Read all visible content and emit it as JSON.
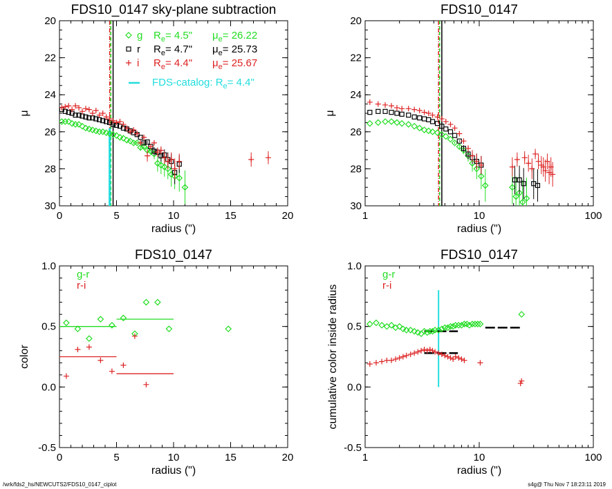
{
  "footer": {
    "left": "/wrk/fds2_hs/NEWCUTS2/FDS10_0147_ciplot",
    "right": "s4g@  Thu Nov  7 18:23:11 2019"
  },
  "colors": {
    "g": "#22dd22",
    "r": "#000000",
    "i": "#dd2222",
    "catalog": "#22dddd"
  },
  "chart_data": [
    {
      "type": "scatter",
      "title": "FDS10_0147 sky-plane subtraction",
      "xlabel": "radius (\")",
      "ylabel": "μ",
      "xscale": "linear",
      "xlim": [
        0,
        20
      ],
      "ylim": [
        30,
        20
      ],
      "xticks": [
        0,
        5,
        10,
        15,
        20
      ],
      "yticks": [
        20,
        22,
        24,
        26,
        28,
        30
      ],
      "legend": [
        {
          "band": "g",
          "marker": "diamond",
          "re_label": "R",
          "re_sub": "e",
          "re_value": "=  4.5\"",
          "mu_label": "μ",
          "mu_sub": "e",
          "mu_value": "= 26.22"
        },
        {
          "band": "r",
          "marker": "square",
          "re_label": "R",
          "re_sub": "e",
          "re_value": "=  4.7\"",
          "mu_label": "μ",
          "mu_sub": "e",
          "mu_value": "= 25.73"
        },
        {
          "band": "i",
          "marker": "plus",
          "re_label": "R",
          "re_sub": "e",
          "re_value": "=  4.4\"",
          "mu_label": "μ",
          "mu_sub": "e",
          "mu_value": "= 25.67"
        }
      ],
      "catalog_label": "FDS-catalog: R",
      "catalog_sub": "e",
      "catalog_value": "=  4.4\"",
      "vlines": [
        {
          "band": "g",
          "x": 4.5,
          "style": "dash"
        },
        {
          "band": "r",
          "x": 4.7,
          "style": "solid"
        },
        {
          "band": "i",
          "x": 4.4,
          "style": "dashdot"
        },
        {
          "band": "catalog",
          "x": 4.4,
          "style": "solid",
          "ymin": 25.8,
          "ymax": 30
        }
      ],
      "series": [
        {
          "name": "g",
          "marker": "diamond",
          "x": [
            0.2,
            0.5,
            0.8,
            1.1,
            1.4,
            1.7,
            2.0,
            2.3,
            2.6,
            2.9,
            3.2,
            3.5,
            3.8,
            4.1,
            4.4,
            4.7,
            5.0,
            5.3,
            5.6,
            5.9,
            6.2,
            6.5,
            6.8,
            7.1,
            7.4,
            7.7,
            8.0,
            8.3,
            8.6,
            8.9,
            9.2,
            9.5,
            9.8,
            10.1,
            10.5,
            11.0
          ],
          "y": [
            25.45,
            25.45,
            25.45,
            25.55,
            25.6,
            25.6,
            25.7,
            25.8,
            25.85,
            25.9,
            25.95,
            26.0,
            26.0,
            26.05,
            26.1,
            26.15,
            26.2,
            26.3,
            26.35,
            26.45,
            26.5,
            26.6,
            26.6,
            26.85,
            26.8,
            27.0,
            27.05,
            27.2,
            27.7,
            27.8,
            27.9,
            28.0,
            28.3,
            28.4,
            28.5,
            29.0
          ]
        },
        {
          "name": "r",
          "marker": "square",
          "x": [
            0.2,
            0.5,
            0.8,
            1.1,
            1.4,
            1.7,
            2.0,
            2.3,
            2.6,
            2.9,
            3.2,
            3.5,
            3.8,
            4.1,
            4.4,
            4.7,
            5.0,
            5.3,
            5.6,
            5.9,
            6.2,
            6.5,
            6.8,
            7.1,
            7.4,
            7.7,
            8.0,
            8.3,
            8.6,
            8.9,
            9.2,
            9.5,
            9.8,
            10.1,
            10.5
          ],
          "y": [
            24.8,
            24.9,
            24.95,
            25.0,
            25.1,
            25.1,
            25.15,
            25.2,
            25.25,
            25.25,
            25.3,
            25.35,
            25.4,
            25.45,
            25.5,
            25.6,
            25.65,
            25.7,
            25.8,
            25.85,
            25.95,
            26.05,
            26.15,
            26.3,
            26.6,
            26.55,
            26.8,
            27.05,
            27.1,
            27.3,
            27.25,
            27.5,
            27.6,
            28.2,
            27.75
          ]
        },
        {
          "name": "i",
          "marker": "plus",
          "x": [
            0.2,
            0.5,
            0.8,
            1.1,
            1.4,
            1.7,
            2.0,
            2.3,
            2.6,
            2.9,
            3.2,
            3.5,
            3.8,
            4.1,
            4.4,
            4.7,
            5.0,
            5.3,
            5.6,
            5.9,
            6.2,
            6.5,
            6.8,
            7.1,
            7.4,
            7.7,
            8.0,
            8.3,
            8.6,
            8.9,
            9.2,
            9.5,
            9.8,
            10.1,
            10.5,
            16.8,
            18.3
          ],
          "y": [
            24.7,
            24.65,
            24.6,
            24.8,
            24.6,
            24.7,
            24.9,
            24.75,
            24.8,
            25.0,
            24.85,
            25.1,
            25.0,
            25.2,
            25.3,
            25.4,
            25.5,
            25.45,
            25.6,
            25.8,
            26.0,
            25.9,
            26.1,
            26.6,
            26.3,
            27.3,
            26.8,
            26.6,
            27.1,
            27.0,
            27.4,
            27.6,
            27.5,
            28.0,
            27.6,
            27.5,
            27.4
          ]
        }
      ]
    },
    {
      "type": "scatter",
      "title": "FDS10_0147",
      "xlabel": "radius (\")",
      "ylabel": "μ",
      "xscale": "log",
      "xlim": [
        1,
        100
      ],
      "ylim": [
        30,
        20
      ],
      "xticks": [
        1,
        10,
        100
      ],
      "yticks": [
        20,
        22,
        24,
        26,
        28,
        30
      ],
      "vlines": [
        {
          "band": "g",
          "x": 4.5,
          "style": "dash"
        },
        {
          "band": "r",
          "x": 4.7,
          "style": "solid"
        },
        {
          "band": "i",
          "x": 4.4,
          "style": "dashdot"
        }
      ],
      "series": [
        {
          "name": "g",
          "marker": "diamond",
          "x": [
            1.1,
            1.3,
            1.5,
            1.7,
            1.9,
            2.1,
            2.4,
            2.7,
            3.0,
            3.3,
            3.6,
            3.9,
            4.3,
            4.7,
            5.1,
            5.6,
            6.1,
            6.7,
            7.3,
            8.0,
            8.7,
            9.5,
            10.4,
            11.3,
            19.5,
            21.0,
            22.5,
            24.0,
            26.0
          ],
          "y": [
            25.55,
            25.5,
            25.45,
            25.45,
            25.5,
            25.55,
            25.6,
            25.7,
            25.8,
            25.9,
            25.95,
            26.0,
            26.05,
            26.15,
            26.25,
            26.4,
            26.6,
            26.8,
            27.0,
            27.3,
            27.7,
            28.0,
            28.4,
            28.9,
            29.0,
            29.5,
            29.3,
            29.8,
            29.6
          ]
        },
        {
          "name": "r",
          "marker": "square",
          "x": [
            1.1,
            1.3,
            1.5,
            1.7,
            1.9,
            2.1,
            2.4,
            2.7,
            3.0,
            3.3,
            3.6,
            3.9,
            4.3,
            4.7,
            5.1,
            5.6,
            6.1,
            6.7,
            7.3,
            8.0,
            8.7,
            9.5,
            10.4,
            20.5,
            22.5,
            24.5,
            30.0,
            32.5
          ],
          "y": [
            24.95,
            24.9,
            24.9,
            24.95,
            25.0,
            25.05,
            25.1,
            25.2,
            25.25,
            25.3,
            25.35,
            25.45,
            25.55,
            25.7,
            25.85,
            26.0,
            26.2,
            26.5,
            26.9,
            27.2,
            27.4,
            27.6,
            27.8,
            28.6,
            28.6,
            28.8,
            28.8,
            28.9
          ]
        },
        {
          "name": "i",
          "marker": "plus",
          "x": [
            1.1,
            1.3,
            1.5,
            1.7,
            1.9,
            2.1,
            2.4,
            2.7,
            3.0,
            3.3,
            3.6,
            3.9,
            4.3,
            4.7,
            5.1,
            5.6,
            6.1,
            6.7,
            7.3,
            8.0,
            8.7,
            9.5,
            10.4,
            19.5,
            21.5,
            25.0,
            27.0,
            29.0,
            31.0,
            33.0,
            35.0,
            36.5,
            38.0,
            39.5,
            41.0,
            42.5,
            44.0
          ],
          "y": [
            24.4,
            24.5,
            24.55,
            24.6,
            24.7,
            24.75,
            24.75,
            24.8,
            24.85,
            24.95,
            25.0,
            25.1,
            25.2,
            25.3,
            25.45,
            25.6,
            25.8,
            26.1,
            26.5,
            26.9,
            27.3,
            27.6,
            27.8,
            27.9,
            27.5,
            27.4,
            27.7,
            28.0,
            27.2,
            27.6,
            27.8,
            27.9,
            28.1,
            27.6,
            28.2,
            27.9,
            28.3
          ]
        }
      ]
    },
    {
      "type": "scatter",
      "title": "FDS10_0147",
      "xlabel": "radius (\")",
      "ylabel": "color",
      "xscale": "linear",
      "xlim": [
        0,
        20
      ],
      "ylim": [
        -0.5,
        1.0
      ],
      "xticks": [
        0,
        5,
        10,
        15,
        20
      ],
      "yticks": [
        -0.5,
        0.0,
        0.5,
        1.0
      ],
      "legend": [
        {
          "band": "g",
          "label": "g-r"
        },
        {
          "band": "i",
          "label": "r-i"
        }
      ],
      "series": [
        {
          "name": "g-r",
          "marker": "diamond",
          "x": [
            0.6,
            1.6,
            2.6,
            3.6,
            4.6,
            5.6,
            6.6,
            7.6,
            8.6,
            9.6,
            14.8
          ],
          "y": [
            0.53,
            0.48,
            0.4,
            0.56,
            0.51,
            0.57,
            0.44,
            0.7,
            0.7,
            0.48,
            0.48
          ]
        },
        {
          "name": "r-i",
          "marker": "plus",
          "x": [
            0.6,
            1.6,
            2.6,
            3.6,
            4.6,
            5.6,
            6.6,
            7.6
          ],
          "y": [
            0.09,
            0.31,
            0.33,
            0.22,
            0.13,
            0.18,
            0.42,
            0.02
          ]
        }
      ],
      "segments": [
        {
          "band": "g",
          "x0": 0,
          "x1": 5.0,
          "y": 0.5
        },
        {
          "band": "g",
          "x0": 5.0,
          "x1": 10.0,
          "y": 0.56
        },
        {
          "band": "i",
          "x0": 0,
          "x1": 5.0,
          "y": 0.25
        },
        {
          "band": "i",
          "x0": 5.0,
          "x1": 10.0,
          "y": 0.11
        }
      ]
    },
    {
      "type": "scatter",
      "title": "FDS10_0147",
      "xlabel": "radius (\")",
      "ylabel": "cumulative color inside radius",
      "xscale": "log",
      "xlim": [
        1,
        100
      ],
      "ylim": [
        -0.5,
        1.0
      ],
      "xticks": [
        1,
        10,
        100
      ],
      "yticks": [
        -0.5,
        0.0,
        0.5,
        1.0
      ],
      "legend": [
        {
          "band": "g",
          "label": "g-r"
        },
        {
          "band": "i",
          "label": "r-i"
        }
      ],
      "vline": {
        "band": "catalog",
        "x": 4.4,
        "ymin": 0.0,
        "ymax": 0.8
      },
      "series": [
        {
          "name": "g-r",
          "marker": "diamond",
          "x": [
            1.1,
            1.25,
            1.4,
            1.55,
            1.7,
            1.85,
            2.0,
            2.15,
            2.3,
            2.5,
            2.7,
            2.9,
            3.1,
            3.3,
            3.5,
            3.7,
            3.9,
            4.1,
            4.4,
            4.7,
            5.0,
            5.3,
            5.6,
            5.9,
            6.2,
            6.6,
            7.0,
            7.4,
            7.8,
            8.2,
            8.7,
            9.2,
            9.7,
            10.2,
            23.5
          ],
          "y": [
            0.52,
            0.53,
            0.51,
            0.5,
            0.51,
            0.49,
            0.5,
            0.48,
            0.47,
            0.47,
            0.46,
            0.45,
            0.44,
            0.46,
            0.45,
            0.46,
            0.46,
            0.47,
            0.47,
            0.48,
            0.49,
            0.49,
            0.5,
            0.5,
            0.51,
            0.51,
            0.51,
            0.52,
            0.52,
            0.51,
            0.52,
            0.52,
            0.52,
            0.52,
            0.6
          ]
        },
        {
          "name": "r-i",
          "marker": "plus",
          "x": [
            1.1,
            1.25,
            1.4,
            1.55,
            1.7,
            1.85,
            2.0,
            2.15,
            2.3,
            2.5,
            2.7,
            2.9,
            3.1,
            3.3,
            3.5,
            3.7,
            3.9,
            4.1,
            4.4,
            4.7,
            5.0,
            5.3,
            5.6,
            5.9,
            6.2,
            6.6,
            7.0,
            7.4,
            10.2,
            23.0,
            23.5
          ],
          "y": [
            0.19,
            0.2,
            0.21,
            0.22,
            0.22,
            0.23,
            0.24,
            0.25,
            0.26,
            0.27,
            0.28,
            0.29,
            0.3,
            0.31,
            0.3,
            0.31,
            0.3,
            0.29,
            0.28,
            0.27,
            0.26,
            0.25,
            0.24,
            0.23,
            0.25,
            0.24,
            0.23,
            0.22,
            0.2,
            0.03,
            0.05
          ]
        }
      ],
      "segments": [
        {
          "band": "r",
          "x0": 3.3,
          "x1": 6.5,
          "y": 0.46,
          "style": "dash"
        },
        {
          "band": "r",
          "x0": 11.3,
          "x1": 23.0,
          "y": 0.49,
          "style": "dash"
        },
        {
          "band": "r",
          "x0": 3.3,
          "x1": 6.5,
          "y": 0.28,
          "style": "dash"
        }
      ]
    }
  ]
}
